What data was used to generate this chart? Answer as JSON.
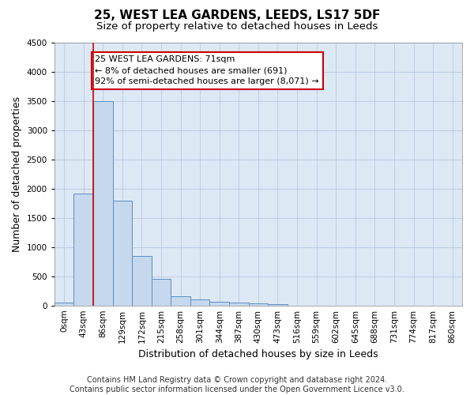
{
  "title": "25, WEST LEA GARDENS, LEEDS, LS17 5DF",
  "subtitle": "Size of property relative to detached houses in Leeds",
  "xlabel": "Distribution of detached houses by size in Leeds",
  "ylabel": "Number of detached properties",
  "bin_labels": [
    "0sqm",
    "43sqm",
    "86sqm",
    "129sqm",
    "172sqm",
    "215sqm",
    "258sqm",
    "301sqm",
    "344sqm",
    "387sqm",
    "430sqm",
    "473sqm",
    "516sqm",
    "559sqm",
    "602sqm",
    "645sqm",
    "688sqm",
    "731sqm",
    "774sqm",
    "817sqm",
    "860sqm"
  ],
  "bar_values": [
    50,
    1920,
    3500,
    1790,
    850,
    460,
    160,
    100,
    65,
    55,
    35,
    25,
    0,
    0,
    0,
    0,
    0,
    0,
    0,
    0,
    0
  ],
  "bar_color": "#c5d8ed",
  "bar_edge_color": "#5b8ec4",
  "ylim": [
    0,
    4500
  ],
  "yticks": [
    0,
    500,
    1000,
    1500,
    2000,
    2500,
    3000,
    3500,
    4000,
    4500
  ],
  "property_line_x": 1.5,
  "annotation_text": "25 WEST LEA GARDENS: 71sqm\n← 8% of detached houses are smaller (691)\n92% of semi-detached houses are larger (8,071) →",
  "annotation_box_facecolor": "#ffffff",
  "annotation_box_edgecolor": "#cc0000",
  "footer_line1": "Contains HM Land Registry data © Crown copyright and database right 2024.",
  "footer_line2": "Contains public sector information licensed under the Open Government Licence v3.0.",
  "background_color": "#ffffff",
  "plot_bg_color": "#dde8f5",
  "grid_color": "#b0c4de",
  "title_fontsize": 11,
  "subtitle_fontsize": 9.5,
  "axis_label_fontsize": 9,
  "tick_fontsize": 7.5,
  "annotation_fontsize": 8,
  "footer_fontsize": 7
}
